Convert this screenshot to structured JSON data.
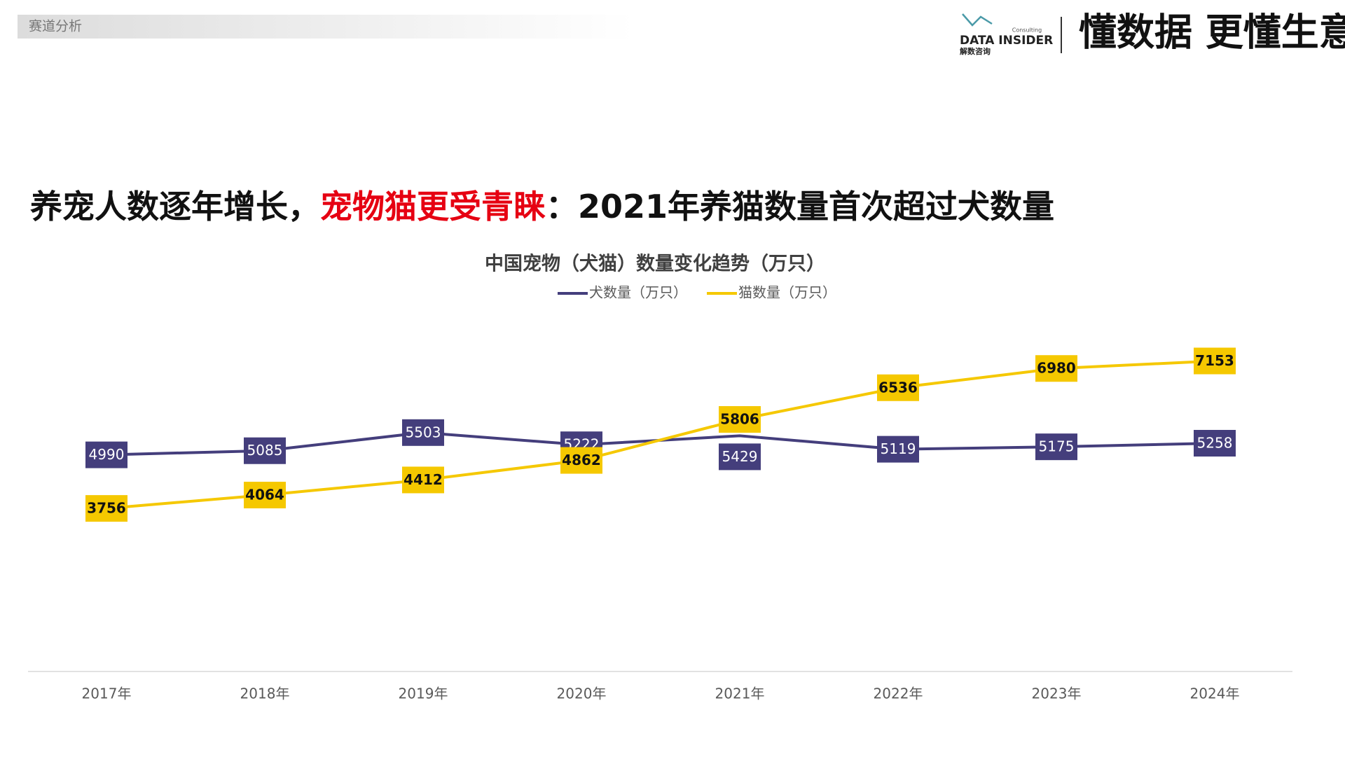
{
  "header": {
    "section": "赛道分析",
    "logo": "DATA INSIDER",
    "logo_sub": "Consulting",
    "logo_cn": "解数咨询",
    "slogan": "懂数据 更懂生意"
  },
  "headline": [
    "养宠人数逐年增长，",
    "宠物猫更受青睐",
    "：2021年养猫数量首次超过犬数量"
  ],
  "chart_data": {
    "type": "line",
    "title": "中国宠物（犬猫）数量变化趋势（万只）",
    "categories": [
      "2017年",
      "2018年",
      "2019年",
      "2020年",
      "2021年",
      "2022年",
      "2023年",
      "2024年"
    ],
    "series": [
      {
        "name": "犬数量（万只）",
        "color": "#443e7c",
        "values": [
          4990,
          5085,
          5503,
          5222,
          5429,
          5119,
          5175,
          5258
        ]
      },
      {
        "name": "猫数量（万只）",
        "color": "#f5c800",
        "values": [
          3756,
          4064,
          4412,
          4862,
          5806,
          6536,
          6980,
          7153
        ]
      }
    ],
    "legend": "top"
  }
}
